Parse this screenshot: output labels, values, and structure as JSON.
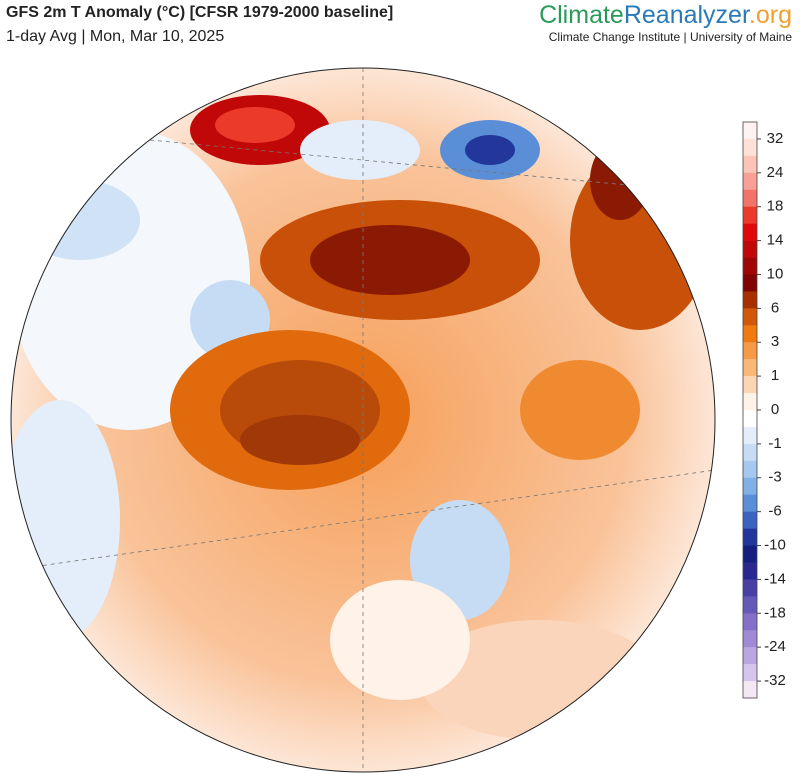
{
  "header": {
    "title": "GFS 2m T Anomaly (°C) [CFSR 1979-2000 baseline]",
    "subtitle": "1-day Avg | Mon, Mar 10, 2025"
  },
  "brand": {
    "name_climate": "Climate",
    "name_reanalyzer": "Reanalyzer",
    "name_org": ".org",
    "institute": "Climate Change Institute | University of Maine"
  },
  "colorbar": {
    "ticks": [
      32,
      24,
      18,
      14,
      10,
      6,
      3,
      1,
      0,
      -1,
      -3,
      -6,
      -10,
      -14,
      -18,
      -24,
      -32
    ],
    "colors": [
      "#fff2f2",
      "#fde0d6",
      "#fcc4b6",
      "#f8a096",
      "#f27468",
      "#ec3a2a",
      "#e00808",
      "#c00808",
      "#a00606",
      "#800404",
      "#a83000",
      "#d05808",
      "#f07a10",
      "#f69a48",
      "#f9b878",
      "#fcd6b4",
      "#fff2e8",
      "#ffffff",
      "#e4eefa",
      "#c6dcf4",
      "#a4c8ef",
      "#80b0e6",
      "#5a8fd8",
      "#3a64c0",
      "#22369c",
      "#161e80",
      "#2a2890",
      "#4840a4",
      "#6458b8",
      "#8470c8",
      "#a08ad6",
      "#bca6e2",
      "#d6c4ec",
      "#f4e8f4"
    ]
  }
}
